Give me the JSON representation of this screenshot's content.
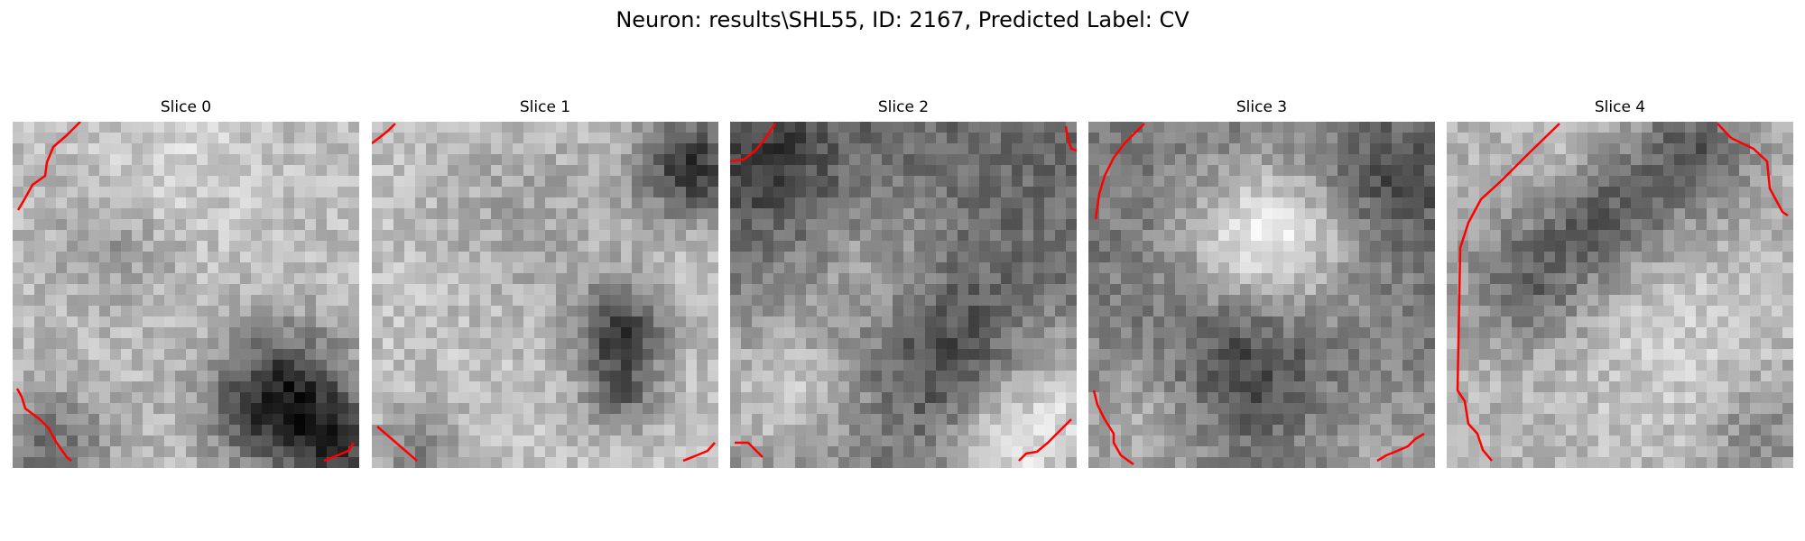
{
  "figure": {
    "title": "Neuron: results\\SHL55, ID: 2167, Predicted Label: CV"
  },
  "panels": [
    {
      "title": "Slice 0"
    },
    {
      "title": "Slice 1"
    },
    {
      "title": "Slice 2"
    },
    {
      "title": "Slice 3"
    },
    {
      "title": "Slice 4"
    }
  ],
  "colors": {
    "contour": "#ff0000",
    "background": "#ffffff",
    "colormap": "gray"
  }
}
